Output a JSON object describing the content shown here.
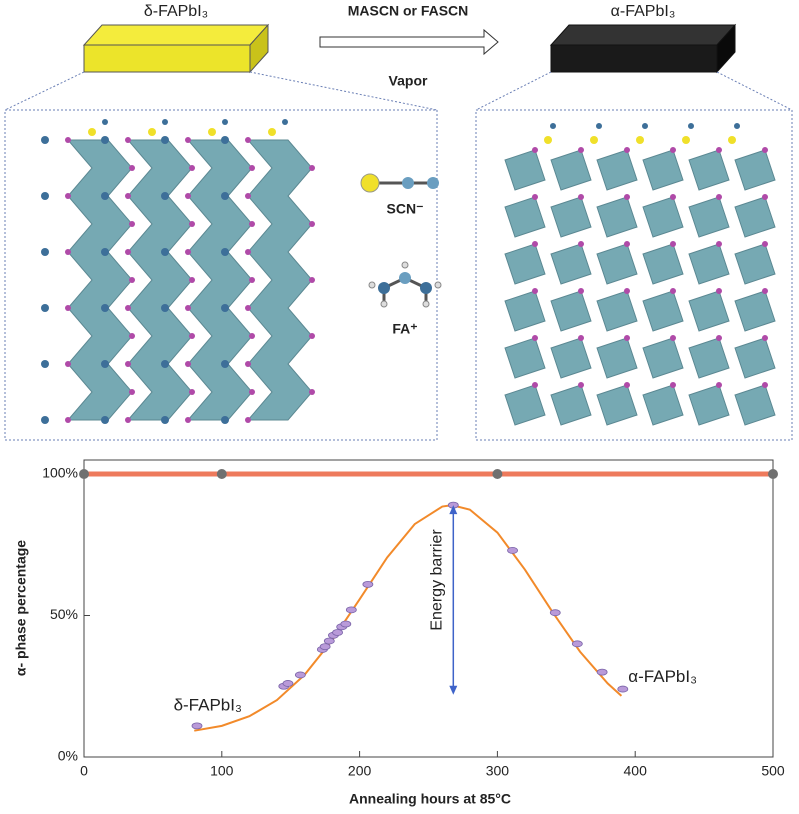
{
  "diagram": {
    "left_label": "δ-FAPbI₃",
    "arrow_top": "MASCN or FASCN",
    "arrow_bottom": "Vapor",
    "right_label": "α-FAPbI₃",
    "ion_scn": "SCN⁻",
    "ion_fa": "FA⁺"
  },
  "chart_data": {
    "type": "line",
    "xlabel": "Annealing hours at 85°C",
    "ylabel": "α- phase percentage",
    "xlim": [
      0,
      500
    ],
    "xticks": [
      0,
      100,
      200,
      300,
      400,
      500
    ],
    "ylim": [
      0,
      100
    ],
    "yticks": [
      {
        "value": 0,
        "label": "0%"
      },
      {
        "value": 50,
        "label": "50%"
      },
      {
        "value": 100,
        "label": "100%"
      }
    ],
    "series": [
      {
        "kind": "line",
        "color": "#ee7a5c",
        "marker_color": "#707070",
        "x": [
          0,
          100,
          300,
          500
        ],
        "values": [
          100,
          100,
          100,
          100
        ]
      },
      {
        "kind": "curve",
        "color": "#f28a2a",
        "x": [
          80,
          100,
          120,
          140,
          160,
          180,
          200,
          220,
          240,
          260,
          267,
          280,
          300,
          320,
          340,
          360,
          380,
          390
        ],
        "values": [
          9.3,
          11.0,
          14.4,
          20.1,
          29.0,
          41.2,
          55.7,
          70.5,
          82.3,
          88.5,
          89,
          87.4,
          79.3,
          66.2,
          51.2,
          37.2,
          26.0,
          21.6
        ]
      },
      {
        "kind": "points",
        "color": "#b99ad9",
        "x": [
          82,
          145,
          148,
          157,
          173,
          175,
          178,
          181,
          184,
          187,
          190,
          194,
          206,
          268,
          311,
          342,
          358,
          376,
          391
        ],
        "values": [
          11,
          25,
          26,
          29,
          38,
          39,
          41,
          43,
          44,
          46,
          47,
          52,
          61,
          89,
          73,
          51,
          40,
          30,
          24
        ]
      }
    ],
    "annotations": [
      {
        "text": "Energy barrier",
        "x": 268,
        "y_top": 89,
        "y_bottom": 22
      },
      {
        "text": "δ-FAPbI₃",
        "x": 65,
        "y": 18
      },
      {
        "text": "α-FAPbI₃",
        "x": 395,
        "y": 28
      }
    ]
  }
}
